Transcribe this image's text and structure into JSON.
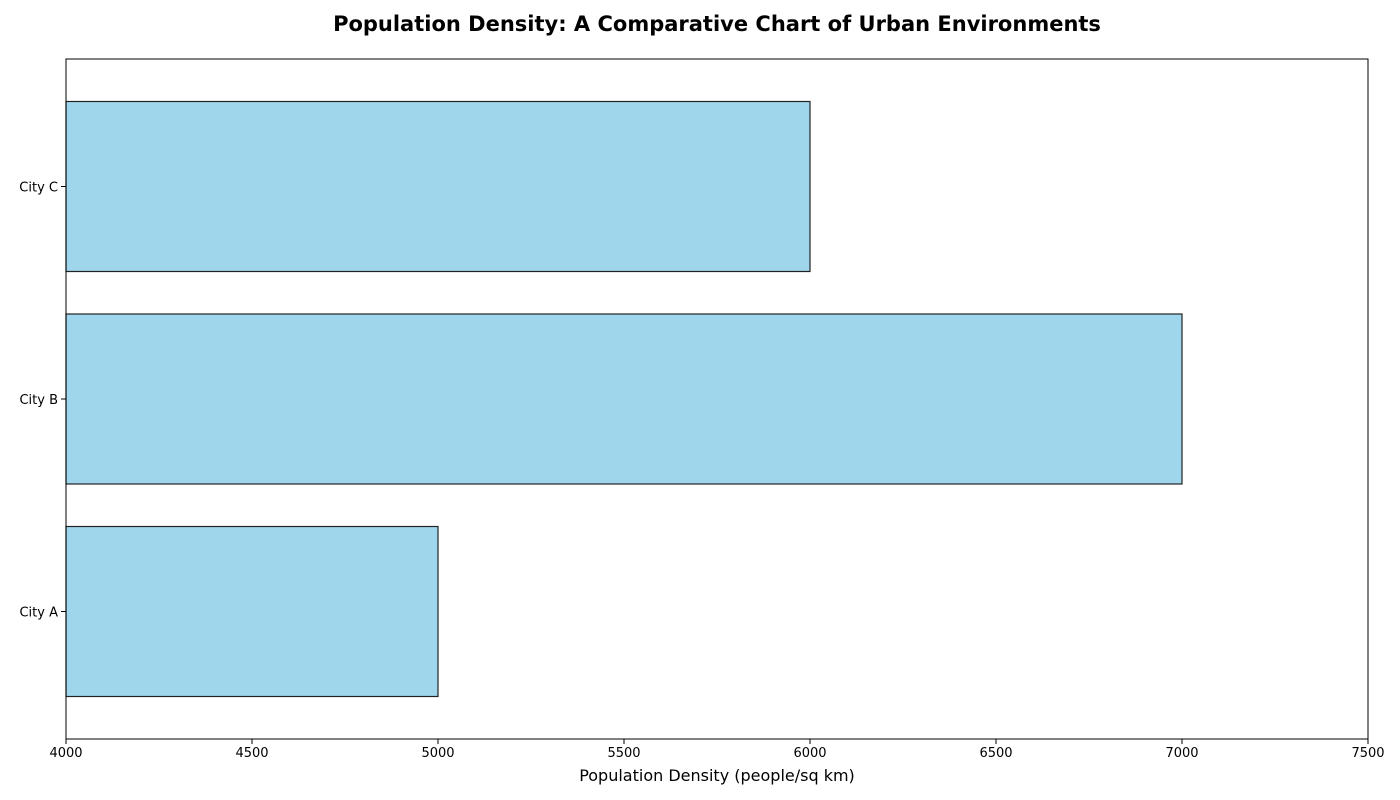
{
  "chart_data": {
    "type": "bar",
    "orientation": "horizontal",
    "title": "Population Density: A Comparative Chart of Urban Environments",
    "xlabel": "Population Density (people/sq km)",
    "ylabel": "",
    "categories": [
      "City A",
      "City B",
      "City C"
    ],
    "values": [
      5000,
      7000,
      6000
    ],
    "xlim": [
      4000,
      7500
    ],
    "xticks": [
      4000,
      4500,
      5000,
      5500,
      6000,
      6500,
      7000,
      7500
    ],
    "grid": false,
    "legend": "none",
    "bar_color": "#a0d6ec",
    "bar_edge_color": "#222222"
  }
}
